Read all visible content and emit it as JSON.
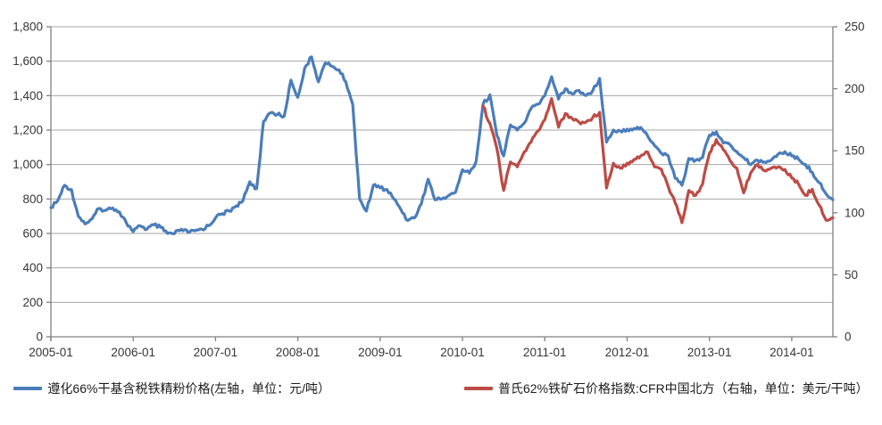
{
  "chart_data": {
    "type": "line",
    "title": "",
    "grid": "horizontal-only",
    "legend_position": "bottom",
    "background": "#ffffff",
    "gridline_color": "#a6a6a6",
    "axis_line_color": "#808080",
    "x_axis": {
      "unit": "month",
      "start": "2005-01",
      "end": "2014-07",
      "tick_labels": [
        "2005-01",
        "2006-01",
        "2007-01",
        "2008-01",
        "2009-01",
        "2010-01",
        "2011-01",
        "2012-01",
        "2013-01",
        "2014-01"
      ]
    },
    "left_axis": {
      "min": 0,
      "max": 1800,
      "step": 200,
      "tick_labels": [
        "0",
        "200",
        "400",
        "600",
        "800",
        "1,000",
        "1,200",
        "1,400",
        "1,600",
        "1,800"
      ]
    },
    "right_axis": {
      "min": 0,
      "max": 250,
      "step": 50,
      "tick_labels": [
        "0",
        "50",
        "100",
        "150",
        "200",
        "250"
      ]
    },
    "series": [
      {
        "name": "遵化66%干基含税铁精粉价格(左轴，单位：元/吨）",
        "axis": "left",
        "color": "#4a7dba",
        "start_month": "2005-01",
        "monthly_values": [
          750,
          790,
          880,
          855,
          700,
          655,
          685,
          745,
          735,
          748,
          725,
          662,
          610,
          645,
          625,
          650,
          635,
          600,
          598,
          625,
          605,
          615,
          625,
          645,
          690,
          715,
          730,
          760,
          790,
          900,
          860,
          1250,
          1300,
          1290,
          1280,
          1490,
          1390,
          1560,
          1625,
          1480,
          1590,
          1570,
          1550,
          1480,
          1350,
          800,
          730,
          880,
          865,
          855,
          800,
          740,
          675,
          690,
          770,
          915,
          795,
          800,
          820,
          840,
          970,
          950,
          1020,
          1350,
          1405,
          1170,
          1050,
          1230,
          1200,
          1240,
          1325,
          1350,
          1400,
          1510,
          1380,
          1440,
          1410,
          1430,
          1400,
          1430,
          1500,
          1130,
          1200,
          1195,
          1205,
          1210,
          1215,
          1165,
          1110,
          1065,
          1050,
          920,
          880,
          1035,
          1025,
          1040,
          1170,
          1190,
          1125,
          1115,
          1075,
          1040,
          1000,
          1025,
          1015,
          1025,
          1060,
          1075,
          1050,
          1030,
          1000,
          955,
          895,
          830,
          795
        ]
      },
      {
        "name": "普氏62%铁矿石价格指数:CFR中国北方（右轴，单位：美元/干吨）",
        "axis": "right",
        "color": "#bd4b45",
        "start_month": "2010-04",
        "monthly_values": [
          186,
          172,
          152,
          118,
          141,
          137,
          149,
          157,
          166,
          175,
          192,
          169,
          180,
          176,
          173,
          173,
          177,
          181,
          120,
          140,
          136,
          140,
          143,
          146,
          149,
          137,
          135,
          121,
          108,
          92,
          118,
          114,
          123,
          148,
          159,
          151,
          142,
          136,
          116,
          132,
          139,
          134,
          136,
          137,
          135,
          128,
          123,
          114,
          119,
          106,
          94,
          96
        ]
      }
    ]
  }
}
